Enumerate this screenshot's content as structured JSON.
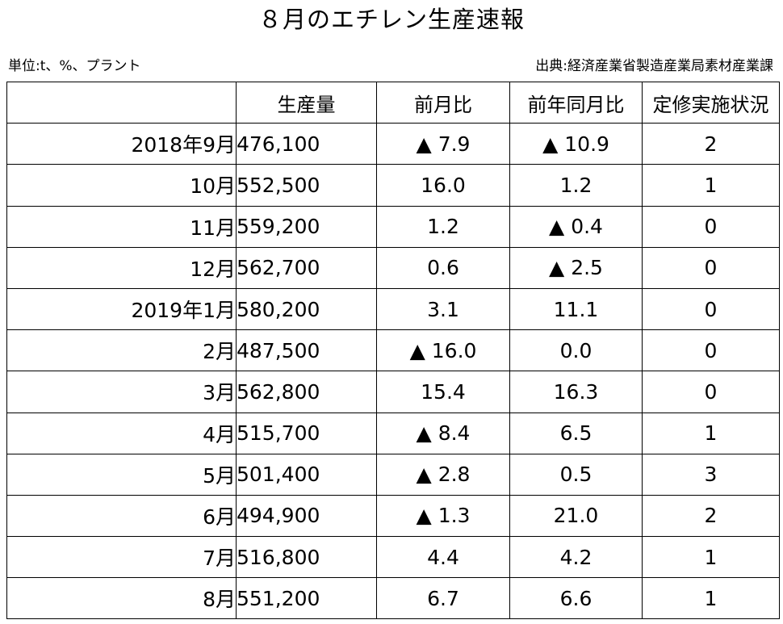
{
  "title": "８月のエチレン生産速報",
  "unit_note": "単位:t、%、プラント",
  "source_note": "出典:経済産業省製造産業局素材産業課",
  "chart_data": {
    "type": "table",
    "columns": [
      "",
      "生産量",
      "前月比",
      "前年同月比",
      "定修実施状況"
    ],
    "rows": [
      {
        "period": "2018年9月",
        "production": "476,100",
        "mom": "▲ 7.9",
        "yoy": "▲ 10.9",
        "maintenance": "2"
      },
      {
        "period": "10月",
        "production": "552,500",
        "mom": "16.0",
        "yoy": "1.2",
        "maintenance": "1"
      },
      {
        "period": "11月",
        "production": "559,200",
        "mom": "1.2",
        "yoy": "▲ 0.4",
        "maintenance": "0"
      },
      {
        "period": "12月",
        "production": "562,700",
        "mom": "0.6",
        "yoy": "▲ 2.5",
        "maintenance": "0"
      },
      {
        "period": "2019年1月",
        "production": "580,200",
        "mom": "3.1",
        "yoy": "11.1",
        "maintenance": "0"
      },
      {
        "period": "2月",
        "production": "487,500",
        "mom": "▲ 16.0",
        "yoy": "0.0",
        "maintenance": "0"
      },
      {
        "period": "3月",
        "production": "562,800",
        "mom": "15.4",
        "yoy": "16.3",
        "maintenance": "0"
      },
      {
        "period": "4月",
        "production": "515,700",
        "mom": "▲ 8.4",
        "yoy": "6.5",
        "maintenance": "1"
      },
      {
        "period": "5月",
        "production": "501,400",
        "mom": "▲ 2.8",
        "yoy": "0.5",
        "maintenance": "3"
      },
      {
        "period": "6月",
        "production": "494,900",
        "mom": "▲ 1.3",
        "yoy": "21.0",
        "maintenance": "2"
      },
      {
        "period": "7月",
        "production": "516,800",
        "mom": "4.4",
        "yoy": "4.2",
        "maintenance": "1"
      },
      {
        "period": "8月",
        "production": "551,200",
        "mom": "6.7",
        "yoy": "6.6",
        "maintenance": "1"
      }
    ]
  }
}
